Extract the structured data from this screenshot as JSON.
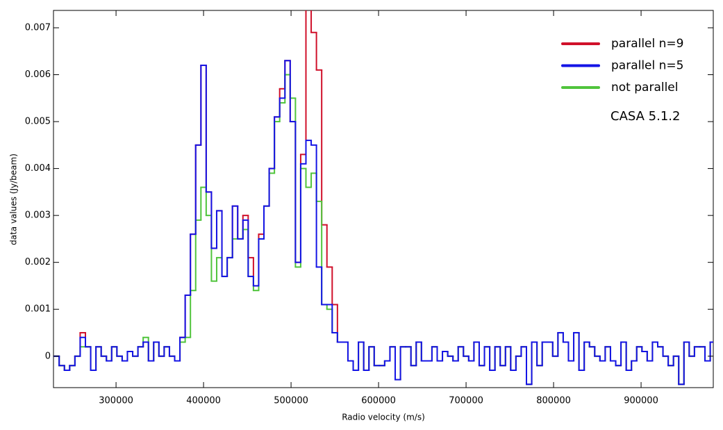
{
  "chart_data": {
    "type": "step",
    "x_label": "Radio velocity (m/s)",
    "y_label": "data values (Jy/beam)",
    "annotation": "CASA 5.1.2",
    "xlim": [
      228500,
      982500
    ],
    "ylim": [
      -0.00067,
      0.00737
    ],
    "xticks": [
      300000,
      400000,
      500000,
      600000,
      700000,
      800000,
      900000
    ],
    "yticks": [
      0,
      0.001,
      0.002,
      0.003,
      0.004,
      0.005,
      0.006,
      0.007
    ],
    "legend": "upper right",
    "x": [
      232000,
      238000,
      244000,
      250000,
      256000,
      262000,
      268000,
      274000,
      280000,
      286000,
      292000,
      298000,
      304000,
      310000,
      316000,
      322000,
      328000,
      334000,
      340000,
      346000,
      352000,
      358000,
      364000,
      370000,
      376000,
      382000,
      388000,
      394000,
      400000,
      406000,
      412000,
      418000,
      424000,
      430000,
      436000,
      442000,
      448000,
      454000,
      460000,
      466000,
      472000,
      478000,
      484000,
      490000,
      496000,
      502000,
      508000,
      514000,
      520000,
      526000,
      532000,
      538000,
      544000,
      550000,
      556000,
      562000,
      568000,
      574000,
      580000,
      586000,
      592000,
      598000,
      604000,
      610000,
      616000,
      622000,
      628000,
      634000,
      640000,
      646000,
      652000,
      658000,
      664000,
      670000,
      676000,
      682000,
      688000,
      694000,
      700000,
      706000,
      712000,
      718000,
      724000,
      730000,
      736000,
      742000,
      748000,
      754000,
      760000,
      766000,
      772000,
      778000,
      784000,
      790000,
      796000,
      802000,
      808000,
      814000,
      820000,
      826000,
      832000,
      838000,
      844000,
      850000,
      856000,
      862000,
      868000,
      874000,
      880000,
      886000,
      892000,
      898000,
      904000,
      910000,
      916000,
      922000,
      928000,
      934000,
      940000,
      946000,
      952000,
      958000,
      964000,
      970000,
      976000,
      982000
    ],
    "series": [
      {
        "name": "parallel n=9",
        "color": "#d0102a",
        "values": [
          0,
          -0.0002,
          -0.0003,
          -0.0002,
          0,
          0.0005,
          0.0002,
          -0.0003,
          0.0002,
          0,
          -0.0001,
          0.0002,
          0,
          -0.0001,
          0.0001,
          0,
          0.0002,
          0.0003,
          -0.0001,
          0.0003,
          0,
          0.0002,
          0,
          -0.0001,
          0.0004,
          0.0013,
          0.0026,
          0.0045,
          0.0062,
          0.0035,
          0.0023,
          0.0031,
          0.0017,
          0.0021,
          0.0032,
          0.0025,
          0.003,
          0.0021,
          0.0015,
          0.0026,
          0.0032,
          0.004,
          0.0051,
          0.0057,
          0.0063,
          0.005,
          0.002,
          0.0043,
          0.0075,
          0.0069,
          0.0061,
          0.0028,
          0.0019,
          0.0011,
          0.0003,
          0.0003,
          -0.0001,
          -0.0003,
          0.0003,
          -0.0003,
          0.0002,
          -0.0002,
          -0.0002,
          -0.0001,
          0.0002,
          -0.0005,
          0.0002,
          0.0002,
          -0.0002,
          0.0003,
          -0.0001,
          -0.0001,
          0.0002,
          -0.0001,
          0.0001,
          0,
          -0.0001,
          0.0002,
          0,
          -0.0001,
          0.0003,
          -0.0002,
          0.0002,
          -0.0003,
          0.0002,
          -0.0002,
          0.0002,
          -0.0003,
          0,
          0.0002,
          -0.0006,
          0.0003,
          -0.0002,
          0.0003,
          0.0003,
          0,
          0.0005,
          0.0003,
          -0.0001,
          0.0005,
          -0.0003,
          0.0003,
          0.0002,
          0,
          -0.0001,
          0.0002,
          -0.0001,
          -0.0002,
          0.0003,
          -0.0003,
          -0.0001,
          0.0002,
          0.0001,
          -0.0001,
          0.0003,
          0.0002,
          0,
          -0.0002,
          0,
          -0.0006,
          0.0003,
          0,
          0.0002,
          0.0002,
          -0.0001,
          0.0003
        ]
      },
      {
        "name": "parallel n=5",
        "color": "#1414e6",
        "values": [
          0,
          -0.0002,
          -0.0003,
          -0.0002,
          0,
          0.0004,
          0.0002,
          -0.0003,
          0.0002,
          0,
          -0.0001,
          0.0002,
          0,
          -0.0001,
          0.0001,
          0,
          0.0002,
          0.0003,
          -0.0001,
          0.0003,
          0,
          0.0002,
          0,
          -0.0001,
          0.0004,
          0.0013,
          0.0026,
          0.0045,
          0.0062,
          0.0035,
          0.0023,
          0.0031,
          0.0017,
          0.0021,
          0.0032,
          0.0025,
          0.0029,
          0.0017,
          0.0015,
          0.0025,
          0.0032,
          0.004,
          0.0051,
          0.0055,
          0.0063,
          0.005,
          0.002,
          0.0041,
          0.0046,
          0.0045,
          0.0019,
          0.0011,
          0.0011,
          0.0005,
          0.0003,
          0.0003,
          -0.0001,
          -0.0003,
          0.0003,
          -0.0003,
          0.0002,
          -0.0002,
          -0.0002,
          -0.0001,
          0.0002,
          -0.0005,
          0.0002,
          0.0002,
          -0.0002,
          0.0003,
          -0.0001,
          -0.0001,
          0.0002,
          -0.0001,
          0.0001,
          0,
          -0.0001,
          0.0002,
          0,
          -0.0001,
          0.0003,
          -0.0002,
          0.0002,
          -0.0003,
          0.0002,
          -0.0002,
          0.0002,
          -0.0003,
          0,
          0.0002,
          -0.0006,
          0.0003,
          -0.0002,
          0.0003,
          0.0003,
          0,
          0.0005,
          0.0003,
          -0.0001,
          0.0005,
          -0.0003,
          0.0003,
          0.0002,
          0,
          -0.0001,
          0.0002,
          -0.0001,
          -0.0002,
          0.0003,
          -0.0003,
          -0.0001,
          0.0002,
          0.0001,
          -0.0001,
          0.0003,
          0.0002,
          0,
          -0.0002,
          0,
          -0.0006,
          0.0003,
          0,
          0.0002,
          0.0002,
          -0.0001,
          0.0003
        ]
      },
      {
        "name": "not parallel",
        "color": "#50c43c",
        "values": [
          0,
          -0.0002,
          -0.0003,
          -0.0002,
          0,
          0.0002,
          0.0002,
          -0.0003,
          0.0002,
          0,
          -0.0001,
          0.0002,
          0,
          -0.0001,
          0.0001,
          0,
          0.0002,
          0.0004,
          -0.0001,
          0.0003,
          0,
          0.0002,
          0,
          -0.0001,
          0.0003,
          0.0004,
          0.0014,
          0.0029,
          0.0036,
          0.003,
          0.0016,
          0.0021,
          0.0017,
          0.0021,
          0.0025,
          0.0025,
          0.0027,
          0.0017,
          0.0014,
          0.0025,
          0.0032,
          0.0039,
          0.005,
          0.0054,
          0.006,
          0.0055,
          0.0019,
          0.004,
          0.0036,
          0.0039,
          0.0033,
          0.0011,
          0.001,
          0.0005,
          0.0003,
          0.0003,
          -0.0001,
          -0.0003,
          0.0003,
          -0.0003,
          0.0002,
          -0.0002,
          -0.0002,
          -0.0001,
          0.0002,
          -0.0005,
          0.0002,
          0.0002,
          -0.0002,
          0.0003,
          -0.0001,
          -0.0001,
          0.0002,
          -0.0001,
          0.0001,
          0,
          -0.0001,
          0.0002,
          0,
          -0.0001,
          0.0003,
          -0.0002,
          0.0002,
          -0.0003,
          0.0002,
          -0.0002,
          0.0002,
          -0.0003,
          0,
          0.0002,
          -0.0006,
          0.0003,
          -0.0002,
          0.0003,
          0.0003,
          0,
          0.0005,
          0.0003,
          -0.0001,
          0.0005,
          -0.0003,
          0.0003,
          0.0002,
          0,
          -0.0001,
          0.0002,
          -0.0001,
          -0.0002,
          0.0003,
          -0.0003,
          -0.0001,
          0.0002,
          0.0001,
          -0.0001,
          0.0003,
          0.0002,
          0,
          -0.0002,
          0,
          -0.0006,
          0.0003,
          0,
          0.0002,
          0.0002,
          -0.0001,
          0.0003
        ]
      }
    ]
  }
}
